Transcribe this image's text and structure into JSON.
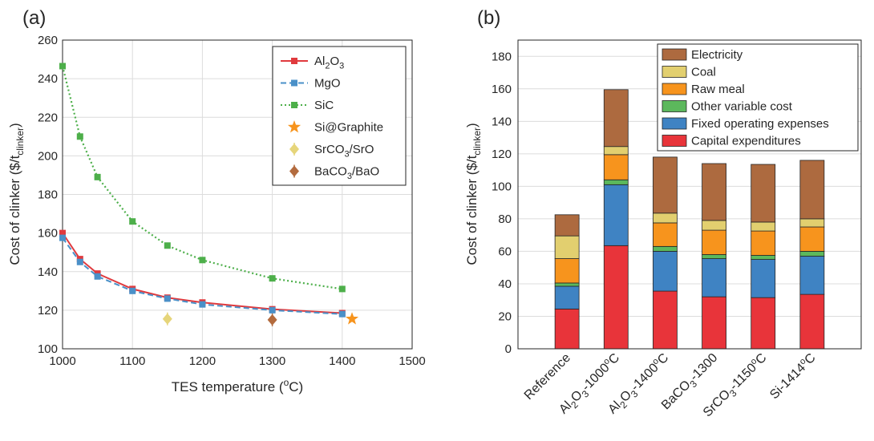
{
  "chart_data": [
    {
      "panel_label": "(a)",
      "type": "line",
      "xlabel": "TES temperature (°C)",
      "ylabel": "Cost of clinker ($/t clinker)",
      "xlim": [
        1000,
        1500
      ],
      "ylim": [
        100,
        260
      ],
      "xticks": [
        1000,
        1100,
        1200,
        1300,
        1400,
        1500
      ],
      "yticks": [
        100,
        120,
        140,
        160,
        180,
        200,
        220,
        240,
        260
      ],
      "grid": true,
      "legend_position": "top-right",
      "series": [
        {
          "name": "Al2O3",
          "style": "solid",
          "marker": "square",
          "color": "#e03a3e",
          "x": [
            1000,
            1025,
            1050,
            1100,
            1150,
            1200,
            1300,
            1400
          ],
          "y": [
            160,
            146.5,
            139,
            131,
            126.5,
            124,
            120.5,
            118.5
          ]
        },
        {
          "name": "MgO",
          "style": "dashed",
          "marker": "square",
          "color": "#4a90c8",
          "x": [
            1000,
            1025,
            1050,
            1100,
            1150,
            1200,
            1300,
            1400
          ],
          "y": [
            157.5,
            145,
            137.5,
            130,
            126,
            123,
            120,
            118
          ]
        },
        {
          "name": "SiC",
          "style": "dotted",
          "marker": "square",
          "color": "#4daf4a",
          "x": [
            1000,
            1025,
            1050,
            1100,
            1150,
            1200,
            1300,
            1400
          ],
          "y": [
            246.5,
            210,
            189,
            166,
            153.5,
            146,
            136.5,
            131
          ]
        },
        {
          "name": "Si@Graphite",
          "style": "none",
          "marker": "star",
          "color": "#f7941d",
          "x": [
            1414
          ],
          "y": [
            115.5
          ]
        },
        {
          "name": "SrCO3/SrO",
          "style": "none",
          "marker": "diamond",
          "color": "#e6d57a",
          "x": [
            1150
          ],
          "y": [
            115.5
          ]
        },
        {
          "name": "BaCO3/BaO",
          "style": "none",
          "marker": "diamond",
          "color": "#b36b3e",
          "x": [
            1300
          ],
          "y": [
            115
          ]
        }
      ]
    },
    {
      "panel_label": "(b)",
      "type": "bar",
      "stacked": true,
      "ylabel": "Cost of clinker ($/t clinker)",
      "ylim": [
        0,
        190
      ],
      "yticks": [
        0,
        20,
        40,
        60,
        80,
        100,
        120,
        140,
        160,
        180
      ],
      "grid": true,
      "legend_position": "top-right",
      "categories": [
        "Reference",
        "Al2O3-1000°C",
        "Al2O3-1400°C",
        "BaCO3-1300",
        "SrCO3-1150°C",
        "Si-1414°C"
      ],
      "series": [
        {
          "name": "Capital expenditures",
          "color": "#e8343a",
          "values": [
            24.5,
            63.5,
            35.5,
            32,
            31.5,
            33.5
          ]
        },
        {
          "name": "Fixed operating expenses",
          "color": "#3f83c3",
          "values": [
            14,
            37.5,
            24.5,
            23.5,
            23.5,
            23.5
          ]
        },
        {
          "name": "Other variable cost",
          "color": "#5cb85c",
          "values": [
            2,
            3,
            3,
            2.5,
            2.5,
            3
          ]
        },
        {
          "name": "Raw meal",
          "color": "#f7941d",
          "values": [
            15,
            15.5,
            14.5,
            15,
            15,
            15
          ]
        },
        {
          "name": "Coal",
          "color": "#e2cf6f",
          "values": [
            14,
            5,
            6,
            6,
            5.5,
            5
          ]
        },
        {
          "name": "Electricity",
          "color": "#ad6a3f",
          "values": [
            13,
            35,
            34.5,
            35,
            35.5,
            36
          ]
        }
      ]
    }
  ]
}
